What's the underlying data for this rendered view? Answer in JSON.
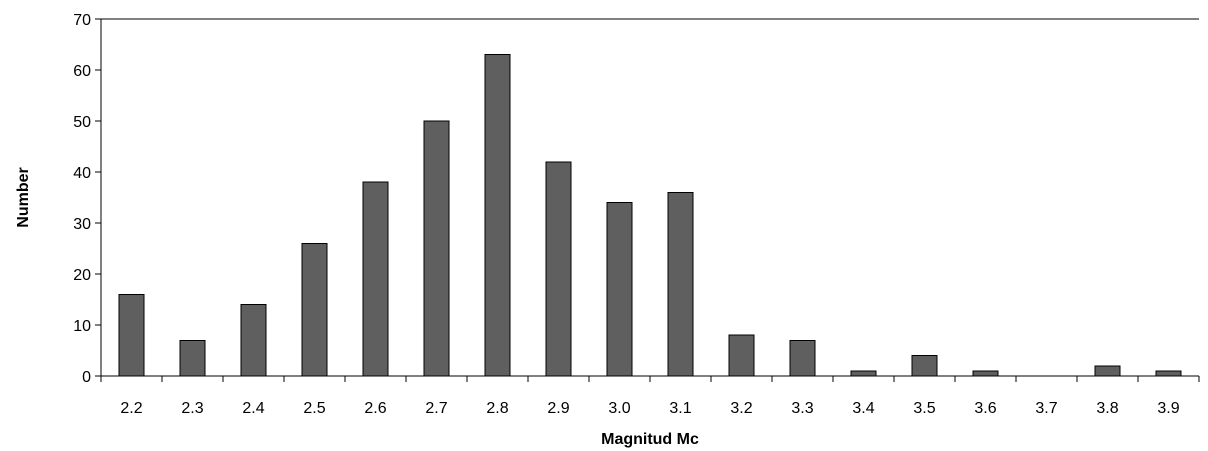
{
  "chart_data": {
    "type": "bar",
    "title": "",
    "xlabel": "Magnitud Mc",
    "ylabel": "Number",
    "categories": [
      "2.2",
      "2.3",
      "2.4",
      "2.5",
      "2.6",
      "2.7",
      "2.8",
      "2.9",
      "3.0",
      "3.1",
      "3.2",
      "3.3",
      "3.4",
      "3.5",
      "3.6",
      "3.7",
      "3.8",
      "3.9"
    ],
    "values": [
      16,
      7,
      14,
      26,
      38,
      50,
      63,
      42,
      34,
      36,
      8,
      7,
      1,
      4,
      1,
      0,
      2,
      1
    ],
    "ylim": [
      0,
      70
    ],
    "yticks": [
      0,
      10,
      20,
      30,
      40,
      50,
      60,
      70
    ],
    "grid": false,
    "legend": "none",
    "colors": {
      "bar_fill": "#5f5f5f",
      "bar_stroke": "#000000",
      "axis": "#000000",
      "background": "#ffffff"
    }
  }
}
